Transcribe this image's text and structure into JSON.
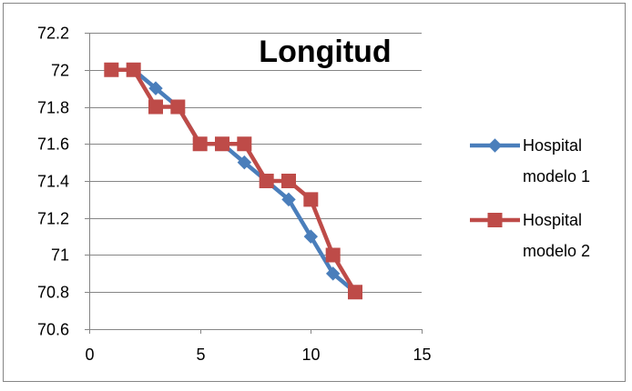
{
  "chart_data": {
    "type": "line",
    "title": "Longitud",
    "xlabel": "",
    "ylabel": "",
    "xlim": [
      0,
      15
    ],
    "ylim": [
      70.6,
      72.2
    ],
    "x_ticks": [
      0,
      5,
      10,
      15
    ],
    "x_tick_labels": [
      "0",
      "5",
      "10",
      "15"
    ],
    "y_ticks": [
      70.6,
      70.8,
      71,
      71.2,
      71.4,
      71.6,
      71.8,
      72,
      72.2
    ],
    "y_tick_labels": [
      "70.6",
      "70.8",
      "71",
      "71.2",
      "71.4",
      "71.6",
      "71.8",
      "72",
      "72.2"
    ],
    "grid": "horizontal",
    "legend_position": "right",
    "series": [
      {
        "name_lines": [
          "Hospital",
          "modelo 1"
        ],
        "marker": "diamond",
        "color": "#4a7ebb",
        "x": [
          1,
          2,
          3,
          4,
          5,
          6,
          7,
          8,
          9,
          10,
          11,
          12
        ],
        "y": [
          72.0,
          72.0,
          71.9,
          71.8,
          71.6,
          71.6,
          71.5,
          71.4,
          71.3,
          71.1,
          70.9,
          70.8
        ]
      },
      {
        "name_lines": [
          "Hospital",
          "modelo 2"
        ],
        "marker": "square",
        "color": "#be4b48",
        "x": [
          1,
          2,
          3,
          4,
          5,
          6,
          7,
          8,
          9,
          10,
          11,
          12
        ],
        "y": [
          72.0,
          72.0,
          71.8,
          71.8,
          71.6,
          71.6,
          71.6,
          71.4,
          71.4,
          71.3,
          71.0,
          70.8
        ]
      }
    ]
  }
}
